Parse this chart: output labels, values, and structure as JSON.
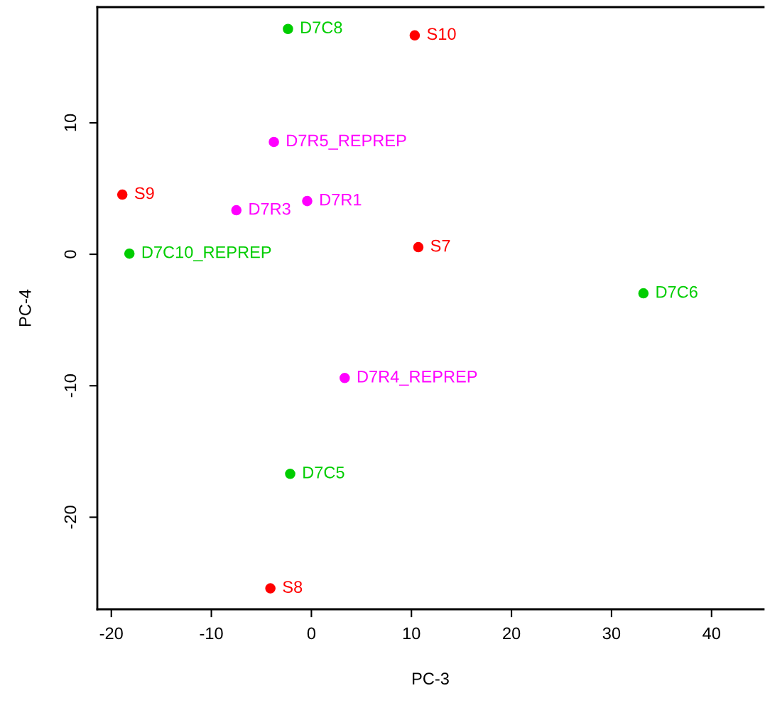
{
  "chart_data": {
    "type": "scatter",
    "xlabel": "PC-3",
    "ylabel": "PC-4",
    "xlim": [
      -21.4,
      45.2
    ],
    "ylim": [
      -27.0,
      18.8
    ],
    "xticks": [
      -20,
      -10,
      0,
      10,
      20,
      30,
      40
    ],
    "yticks": [
      -20,
      -10,
      0,
      10
    ],
    "grid": false,
    "legend": false,
    "marker": "circle",
    "series": [
      {
        "color": "#ff0000",
        "x": [
          10.33,
          -18.9,
          10.69,
          -4.1
        ],
        "values": [
          16.65,
          4.54,
          0.54,
          -25.41
        ]
      },
      {
        "color": "#00cd00",
        "x": [
          -2.34,
          -18.19,
          33.19,
          -2.12
        ],
        "values": [
          17.14,
          0.05,
          -2.97,
          -16.7
        ]
      },
      {
        "color": "#ff00ff",
        "x": [
          -3.75,
          -7.5,
          -0.42,
          3.33
        ],
        "values": [
          8.54,
          3.35,
          4.05,
          -9.41
        ]
      }
    ],
    "annotations": [
      {
        "text": "S10",
        "x": 10.33,
        "y": 16.65
      },
      {
        "text": "S9",
        "x": -18.9,
        "y": 4.54
      },
      {
        "text": "S7",
        "x": 10.69,
        "y": 0.54
      },
      {
        "text": "S8",
        "x": -4.1,
        "y": -25.41
      },
      {
        "text": "D7C8",
        "x": -2.34,
        "y": 17.14
      },
      {
        "text": "D7C10_REPREP",
        "x": -18.19,
        "y": 0.05
      },
      {
        "text": "D7C6",
        "x": 33.19,
        "y": -2.97
      },
      {
        "text": "D7C5",
        "x": -2.12,
        "y": -16.7
      },
      {
        "text": "D7R5_REPREP",
        "x": -3.75,
        "y": 8.54
      },
      {
        "text": "D7R3",
        "x": -7.5,
        "y": 3.35
      },
      {
        "text": "D7R1",
        "x": -0.42,
        "y": 4.05
      },
      {
        "text": "D7R4_REPREP",
        "x": 3.33,
        "y": -9.41
      }
    ]
  }
}
